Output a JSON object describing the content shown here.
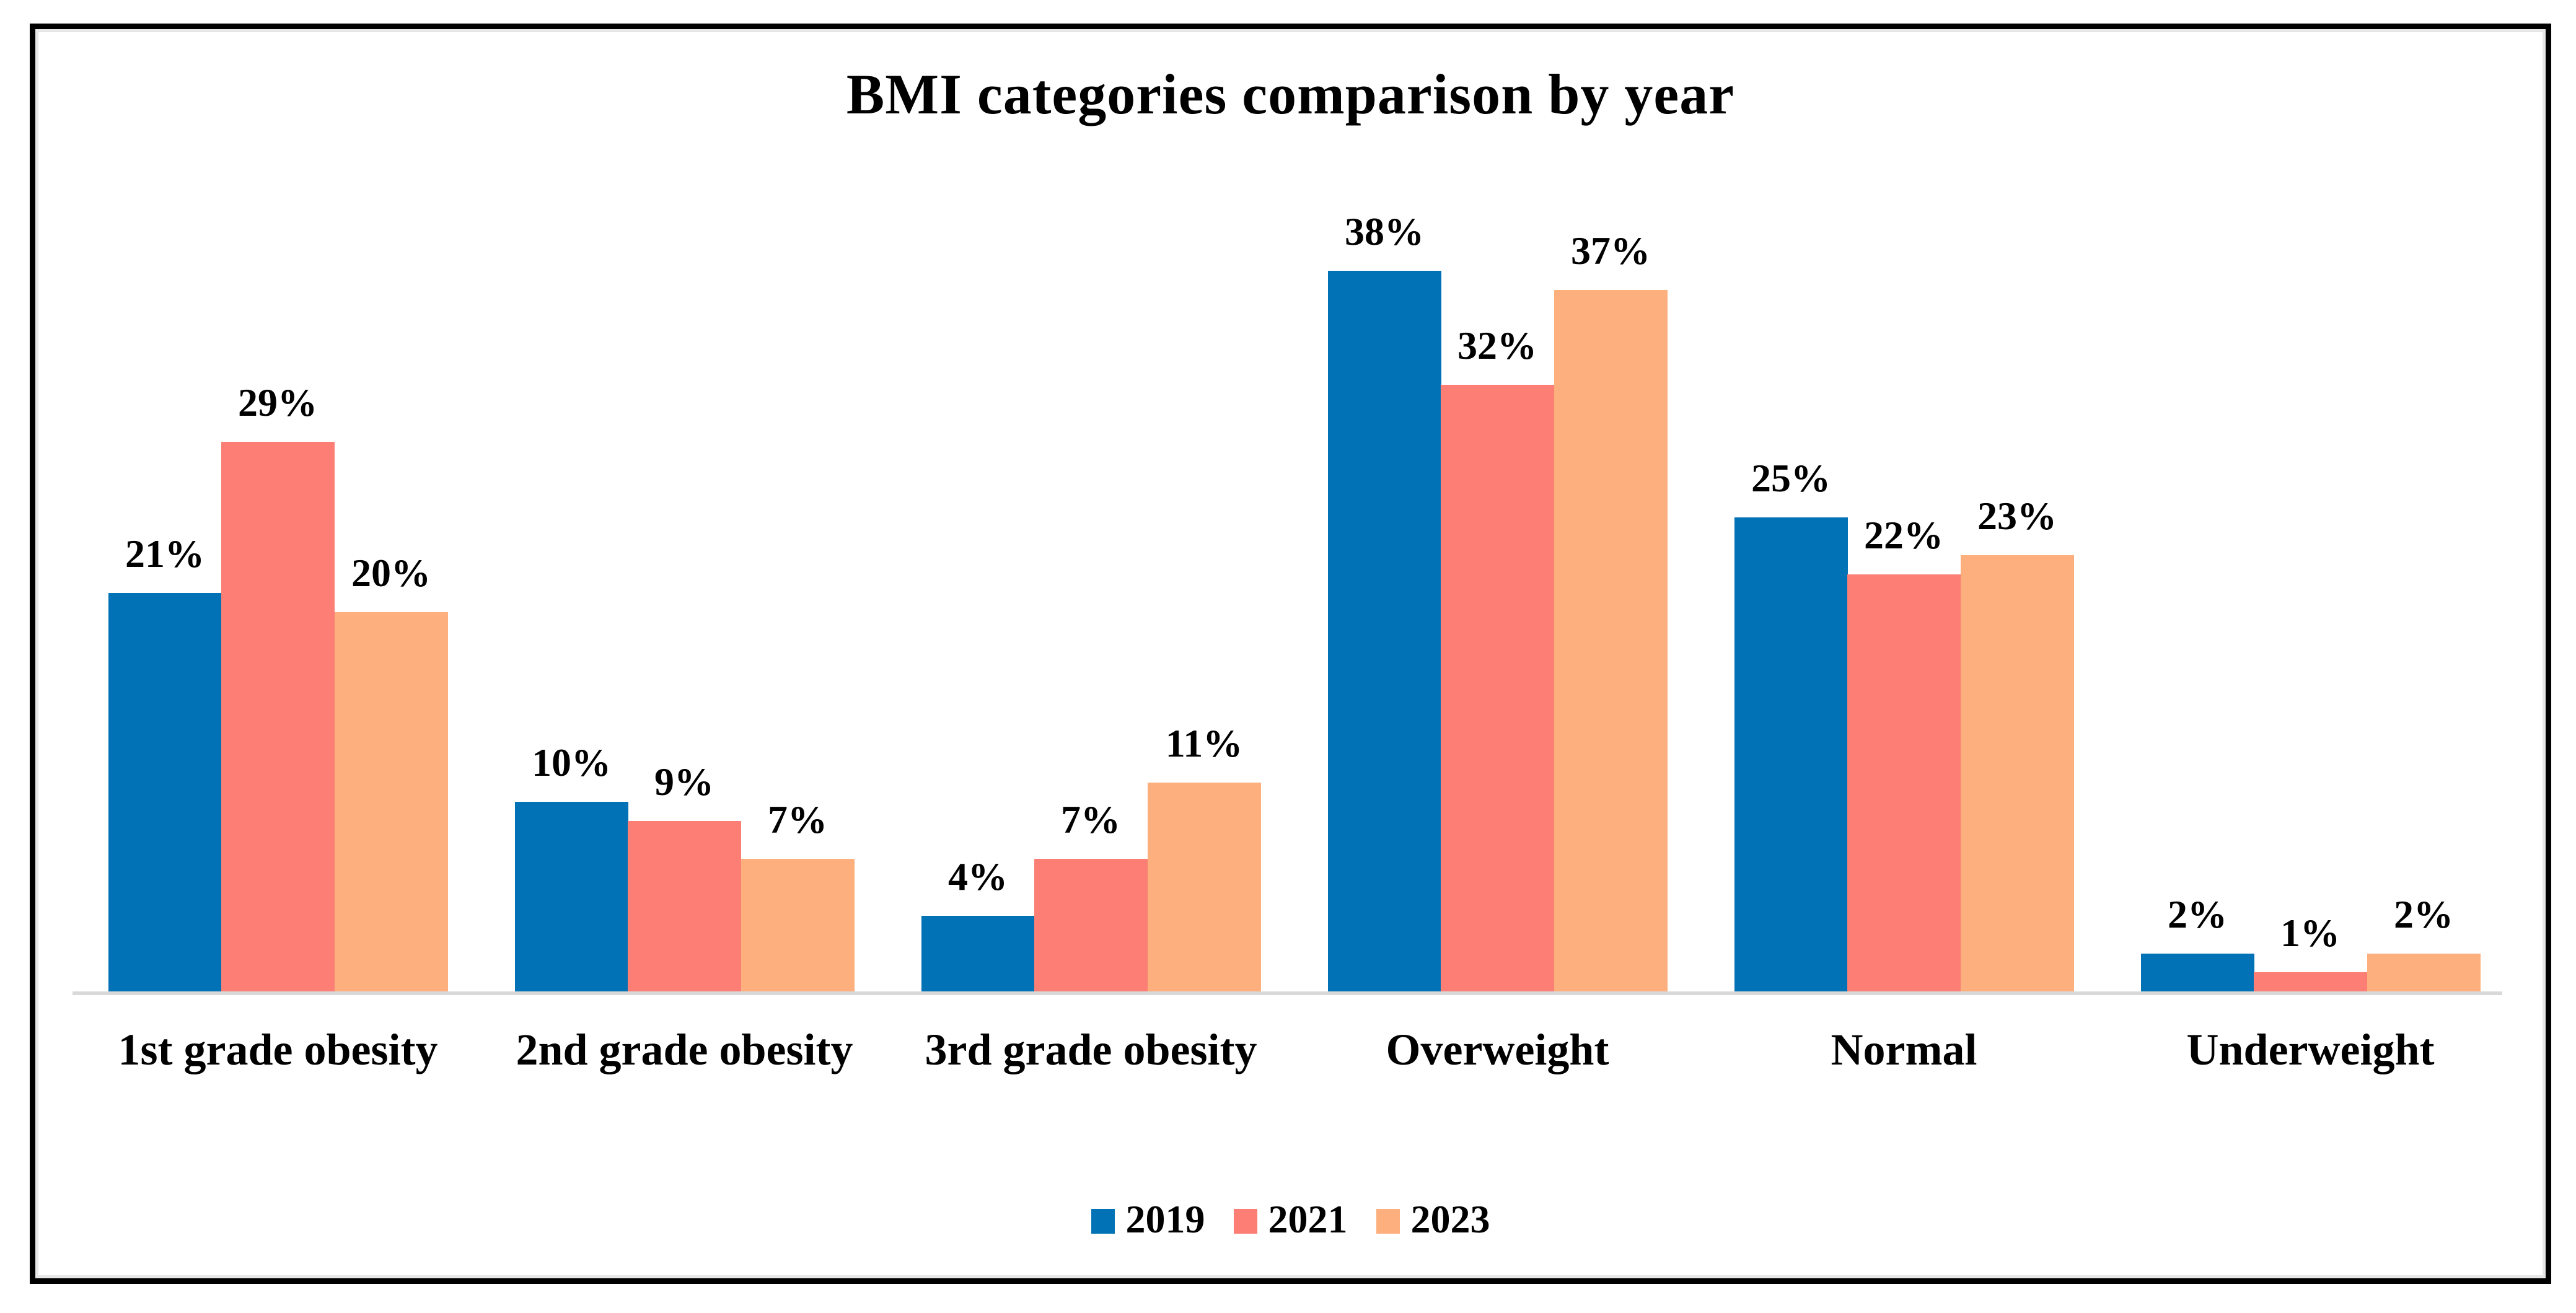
{
  "chart_data": {
    "type": "bar",
    "title": "BMI categories comparison by year",
    "categories": [
      "1st grade obesity",
      "2nd grade obesity",
      "3rd grade obesity",
      "Overweight",
      "Normal",
      "Underweight"
    ],
    "series": [
      {
        "name": "2019",
        "color": "#0272b6",
        "values": [
          21,
          10,
          4,
          38,
          25,
          2
        ],
        "value_labels": [
          "21%",
          "10%",
          "4%",
          "38%",
          "25%",
          "2%"
        ]
      },
      {
        "name": "2021",
        "color": "#fc7e74",
        "values": [
          29,
          9,
          7,
          32,
          22,
          1
        ],
        "value_labels": [
          "29%",
          "9%",
          "7%",
          "32%",
          "22%",
          "1%"
        ]
      },
      {
        "name": "2023",
        "color": "#fdaf7d",
        "values": [
          20,
          7,
          11,
          37,
          23,
          2
        ],
        "value_labels": [
          "20%",
          "7%",
          "11%",
          "37%",
          "23%",
          "2%"
        ]
      }
    ],
    "value_format": "percent",
    "data_labels": true,
    "ylim": [
      0,
      40
    ],
    "gridlines": false,
    "x_axis_line_color": "#d9d9d9",
    "legend_position": "bottom",
    "background_color": "#ffffff",
    "border_color": "#000000"
  }
}
